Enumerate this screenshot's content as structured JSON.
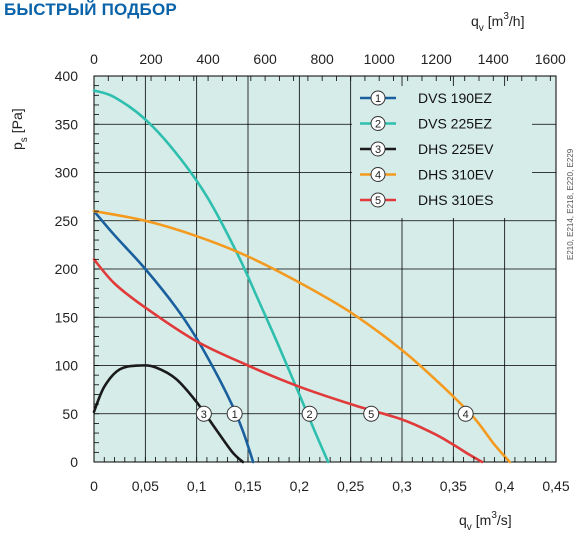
{
  "title": "БЫСТРЫЙ ПОДБОР",
  "side_note": "E210, E214, E218, E220, E229",
  "colors": {
    "plot_bg": "#d6ece8",
    "grid": "#000000",
    "title": "#0a63a8"
  },
  "chart_data": {
    "type": "line",
    "x_label": "qv [m³/s]",
    "x_label_main": "q",
    "x_label_sub": "v",
    "x_label_unit_a": "[m",
    "x_label_unit_sup": "3",
    "x_label_unit_b": "/s]",
    "x2_label_main": "q",
    "x2_label_sub": "v",
    "x2_label_unit_a": "[m",
    "x2_label_unit_sup": "3",
    "x2_label_unit_b": "/h]",
    "y_label_main": "p",
    "y_label_sub": "s",
    "y_label_unit": "[Pa]",
    "xlim": [
      0,
      0.45
    ],
    "ylim": [
      0,
      400
    ],
    "x2lim": [
      0,
      1620
    ],
    "x_ticks": [
      "0",
      "0,05",
      "0,1",
      "0,15",
      "0,2",
      "0,25",
      "0,3",
      "0,35",
      "0,4",
      "0,45"
    ],
    "x_tick_values": [
      0,
      0.05,
      0.1,
      0.15,
      0.2,
      0.25,
      0.3,
      0.35,
      0.4,
      0.45
    ],
    "x2_ticks": [
      "0",
      "200",
      "400",
      "600",
      "800",
      "1000",
      "1200",
      "1400",
      "1600"
    ],
    "x2_tick_values": [
      0,
      200,
      400,
      600,
      800,
      1000,
      1200,
      1400,
      1600
    ],
    "y_ticks": [
      "0",
      "50",
      "100",
      "150",
      "200",
      "250",
      "300",
      "350",
      "400"
    ],
    "y_tick_values": [
      0,
      50,
      100,
      150,
      200,
      250,
      300,
      350,
      400
    ],
    "legend_position": "top-right",
    "series": [
      {
        "id": "1",
        "name": "DVS 190EZ",
        "color": "#1a5f9e",
        "x": [
          0,
          0.02,
          0.05,
          0.08,
          0.1,
          0.12,
          0.135,
          0.145,
          0.152,
          0.155
        ],
        "y": [
          260,
          235,
          200,
          160,
          128,
          90,
          58,
          32,
          10,
          0
        ],
        "marker": {
          "x": 0.137,
          "y": 50
        }
      },
      {
        "id": "2",
        "name": "DVS 225EZ",
        "color": "#2ebfae",
        "x": [
          0,
          0.02,
          0.05,
          0.08,
          0.11,
          0.14,
          0.16,
          0.18,
          0.2,
          0.215,
          0.228
        ],
        "y": [
          385,
          378,
          355,
          320,
          275,
          215,
          168,
          120,
          70,
          32,
          0
        ],
        "marker": {
          "x": 0.21,
          "y": 50
        }
      },
      {
        "id": "3",
        "name": "DHS 225EV",
        "color": "#1a1a1a",
        "x": [
          0,
          0.01,
          0.025,
          0.045,
          0.06,
          0.08,
          0.1,
          0.12,
          0.135,
          0.145
        ],
        "y": [
          52,
          78,
          96,
          100,
          98,
          86,
          62,
          32,
          10,
          0
        ],
        "marker": {
          "x": 0.107,
          "y": 50
        }
      },
      {
        "id": "4",
        "name": "DHS 310EV",
        "color": "#f39a1f",
        "x": [
          0,
          0.05,
          0.1,
          0.15,
          0.2,
          0.25,
          0.3,
          0.34,
          0.37,
          0.39,
          0.405
        ],
        "y": [
          260,
          250,
          234,
          213,
          186,
          155,
          116,
          78,
          46,
          18,
          0
        ],
        "marker": {
          "x": 0.362,
          "y": 50
        }
      },
      {
        "id": "5",
        "name": "DHS 310ES",
        "color": "#e03a3a",
        "x": [
          0,
          0.02,
          0.05,
          0.1,
          0.15,
          0.2,
          0.25,
          0.3,
          0.33,
          0.35,
          0.365,
          0.378
        ],
        "y": [
          210,
          185,
          160,
          125,
          100,
          78,
          60,
          44,
          30,
          18,
          8,
          0
        ],
        "marker": {
          "x": 0.27,
          "y": 50
        }
      }
    ]
  }
}
